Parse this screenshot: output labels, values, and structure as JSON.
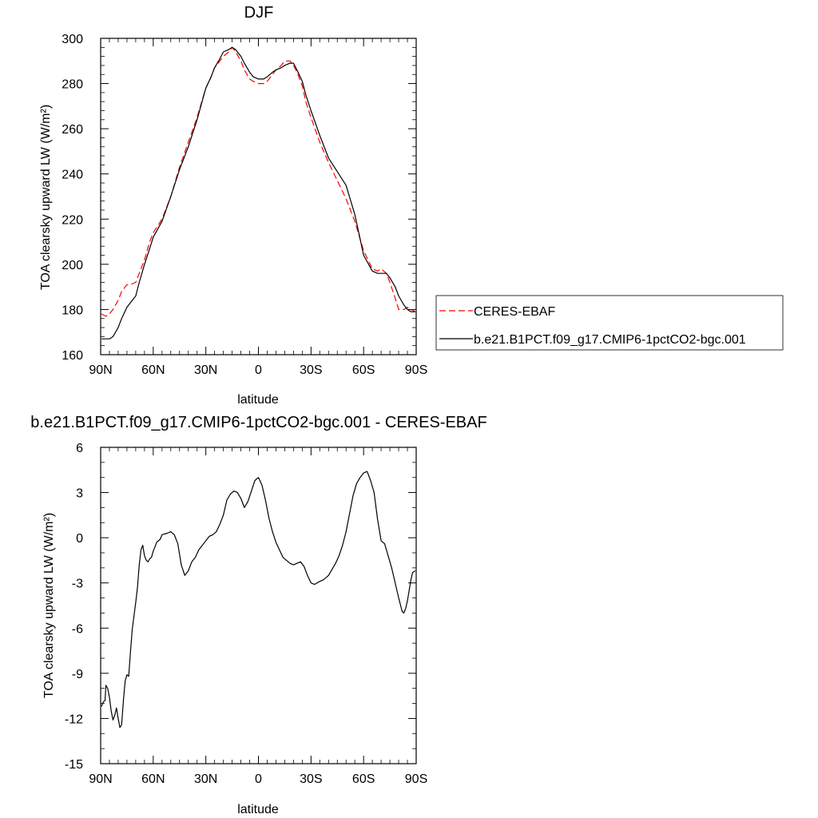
{
  "chart_data": [
    {
      "type": "line",
      "title": "DJF",
      "xlabel": "latitude",
      "ylabel": "TOA clearsky upward LW (W/m²)",
      "xlim": [
        90,
        -90
      ],
      "ylim": [
        160,
        300
      ],
      "xticks": [
        {
          "value": 90,
          "label": "90N"
        },
        {
          "value": 60,
          "label": "60N"
        },
        {
          "value": 30,
          "label": "30N"
        },
        {
          "value": 0,
          "label": "0"
        },
        {
          "value": -30,
          "label": "30S"
        },
        {
          "value": -60,
          "label": "60S"
        },
        {
          "value": -90,
          "label": "90S"
        }
      ],
      "yticks": [
        160,
        180,
        200,
        220,
        240,
        260,
        280,
        300
      ],
      "legend": {
        "placement": "right"
      },
      "series": [
        {
          "name": "CERES-EBAF",
          "color": "#ff0000",
          "dash": true,
          "x": [
            89.5,
            87,
            85,
            83,
            80,
            78,
            75,
            73,
            70,
            68,
            65,
            62,
            60,
            55,
            50,
            45,
            40,
            35,
            30,
            27,
            25,
            22,
            20,
            17,
            15,
            13,
            10,
            8,
            5,
            3,
            0,
            -3,
            -5,
            -8,
            -10,
            -13,
            -15,
            -18,
            -20,
            -22,
            -25,
            -27,
            -30,
            -35,
            -40,
            -45,
            -50,
            -55,
            -60,
            -65,
            -68,
            -70,
            -73,
            -75,
            -78,
            -80,
            -83,
            -85,
            -87,
            -89.5
          ],
          "y": [
            178,
            177,
            178,
            180,
            184,
            188,
            191,
            191,
            192,
            196,
            202,
            210,
            214,
            220,
            230,
            243,
            254,
            265,
            278,
            283,
            287,
            290,
            292,
            294,
            296,
            294,
            290,
            286,
            282,
            281,
            280,
            280,
            281,
            284,
            286,
            288,
            290,
            290,
            288,
            285,
            279,
            272,
            265,
            254,
            245,
            237,
            229,
            219,
            206,
            198,
            197,
            198,
            196,
            192,
            185,
            180,
            180,
            181,
            180,
            179
          ]
        },
        {
          "name": "b.e21.B1PCT.f09_g17.CMIP6-1pctCO2-bgc.001",
          "color": "#000000",
          "dash": false,
          "x": [
            89.5,
            87,
            85,
            83,
            80,
            78,
            75,
            73,
            70,
            68,
            65,
            62,
            60,
            55,
            50,
            45,
            40,
            35,
            30,
            27,
            25,
            22,
            20,
            17,
            15,
            13,
            10,
            8,
            5,
            3,
            0,
            -3,
            -5,
            -8,
            -10,
            -13,
            -15,
            -18,
            -20,
            -22,
            -25,
            -27,
            -30,
            -35,
            -40,
            -45,
            -50,
            -55,
            -60,
            -65,
            -68,
            -70,
            -73,
            -75,
            -78,
            -80,
            -83,
            -85,
            -87,
            -89.5
          ],
          "y": [
            167,
            167,
            167,
            168,
            172,
            176,
            181,
            183,
            186,
            192,
            200,
            207,
            212,
            219,
            230,
            242,
            252,
            264,
            278,
            283,
            287,
            291,
            294,
            295,
            296,
            295,
            292,
            289,
            285,
            283,
            282,
            282,
            283,
            285,
            286,
            287,
            288,
            289,
            289,
            286,
            281,
            275,
            268,
            257,
            247,
            241,
            235,
            222,
            204,
            197,
            196,
            196,
            196,
            194,
            190,
            186,
            182,
            180,
            179,
            179
          ]
        }
      ]
    },
    {
      "type": "line",
      "title": "b.e21.B1PCT.f09_g17.CMIP6-1pctCO2-bgc.001 - CERES-EBAF",
      "xlabel": "latitude",
      "ylabel": "TOA clearsky upward LW (W/m²)",
      "xlim": [
        90,
        -90
      ],
      "ylim": [
        -15,
        6
      ],
      "xticks": [
        {
          "value": 90,
          "label": "90N"
        },
        {
          "value": 60,
          "label": "60N"
        },
        {
          "value": 30,
          "label": "30N"
        },
        {
          "value": 0,
          "label": "0"
        },
        {
          "value": -30,
          "label": "30S"
        },
        {
          "value": -60,
          "label": "60S"
        },
        {
          "value": -90,
          "label": "90S"
        }
      ],
      "yticks": [
        -15,
        -12,
        -9,
        -6,
        -3,
        0,
        3,
        6
      ],
      "series": [
        {
          "color": "#000000",
          "dash": false,
          "x": [
            89.5,
            88.5,
            87.5,
            87,
            86,
            85,
            84,
            83,
            82,
            81,
            80,
            79,
            78,
            77,
            76,
            75,
            74,
            73,
            72,
            71,
            70,
            69,
            68,
            67,
            66,
            65,
            64,
            63,
            62,
            61,
            60,
            58,
            56,
            55,
            52,
            50,
            48,
            46,
            44,
            42,
            40,
            38,
            36,
            34,
            32,
            30,
            28,
            26,
            24,
            22,
            20,
            18,
            16,
            14,
            12,
            10,
            8,
            6,
            4,
            2,
            0,
            -2,
            -4,
            -6,
            -8,
            -10,
            -12,
            -14,
            -16,
            -18,
            -20,
            -22,
            -24,
            -26,
            -28,
            -30,
            -32,
            -35,
            -37,
            -40,
            -42,
            -44,
            -46,
            -48,
            -50,
            -52,
            -54,
            -56,
            -58,
            -60,
            -62,
            -64,
            -66,
            -68,
            -70,
            -72,
            -74,
            -76,
            -78,
            -80,
            -82,
            -83,
            -84,
            -85,
            -86,
            -87,
            -88,
            -89.5
          ],
          "y": [
            -11.2,
            -10.9,
            -10.8,
            -9.8,
            -10.0,
            -10.6,
            -11.5,
            -12.1,
            -11.8,
            -11.3,
            -12.0,
            -12.6,
            -12.4,
            -10.8,
            -9.5,
            -9.1,
            -9.2,
            -7.6,
            -6.1,
            -5.2,
            -4.3,
            -3.3,
            -1.8,
            -0.8,
            -0.5,
            -1.2,
            -1.5,
            -1.6,
            -1.4,
            -1.3,
            -0.9,
            -0.3,
            -0.1,
            0.2,
            0.3,
            0.4,
            0.2,
            -0.4,
            -1.8,
            -2.5,
            -2.2,
            -1.6,
            -1.3,
            -0.8,
            -0.5,
            -0.2,
            0.1,
            0.2,
            0.4,
            0.9,
            1.5,
            2.5,
            2.9,
            3.1,
            3.0,
            2.6,
            2.0,
            2.4,
            3.1,
            3.8,
            4.0,
            3.5,
            2.5,
            1.3,
            0.4,
            -0.3,
            -0.8,
            -1.3,
            -1.5,
            -1.7,
            -1.8,
            -1.7,
            -1.6,
            -1.9,
            -2.5,
            -3.0,
            -3.1,
            -2.9,
            -2.8,
            -2.5,
            -2.1,
            -1.7,
            -1.2,
            -0.5,
            0.4,
            1.6,
            2.8,
            3.6,
            4.0,
            4.3,
            4.4,
            3.8,
            3.0,
            1.2,
            -0.2,
            -0.4,
            -1.2,
            -2.0,
            -3.0,
            -4.0,
            -4.9,
            -5.0,
            -4.7,
            -4.2,
            -3.5,
            -2.8,
            -2.3,
            -2.2
          ]
        }
      ]
    }
  ]
}
